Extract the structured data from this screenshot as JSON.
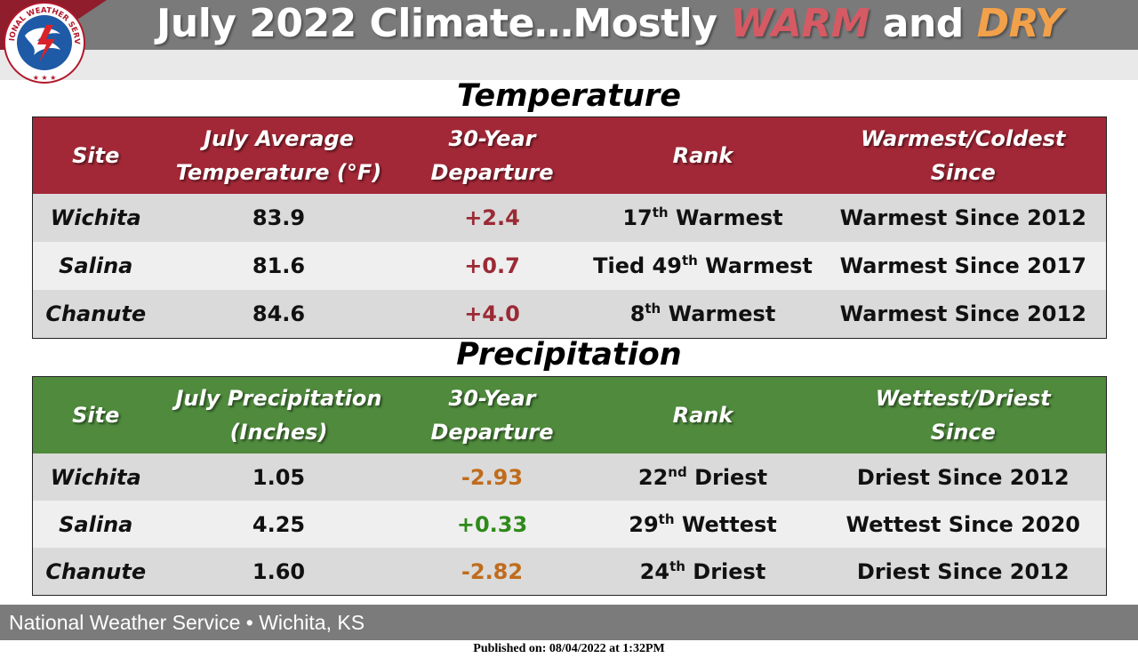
{
  "header": {
    "title_prefix": "July 2022 Climate…Mostly ",
    "title_warm": "WARM",
    "title_mid": " and ",
    "title_dry": "DRY",
    "logo_text": "NATIONAL WEATHER SERVICE"
  },
  "temperature": {
    "section_title": "Temperature",
    "headers": {
      "site": "Site",
      "value_line1": "July Average",
      "value_line2": "Temperature (°F)",
      "dep_line1": "30-Year",
      "dep_line2": "Departure",
      "rank": "Rank",
      "since_line1": "Warmest/Coldest",
      "since_line2": "Since"
    },
    "rows": [
      {
        "site": "Wichita",
        "value": "83.9",
        "departure": "+2.4",
        "rank_pre": "17",
        "rank_sup": "th",
        "rank_post": " Warmest",
        "since": "Warmest Since 2012"
      },
      {
        "site": "Salina",
        "value": "81.6",
        "departure": "+0.7",
        "rank_pre": "Tied 49",
        "rank_sup": "th",
        "rank_post": " Warmest",
        "since": "Warmest Since 2017"
      },
      {
        "site": "Chanute",
        "value": "84.6",
        "departure": "+4.0",
        "rank_pre": "8",
        "rank_sup": "th",
        "rank_post": " Warmest",
        "since": "Warmest Since 2012"
      }
    ]
  },
  "precipitation": {
    "section_title": "Precipitation",
    "headers": {
      "site": "Site",
      "value_line1": "July Precipitation",
      "value_line2": "(Inches)",
      "dep_line1": "30-Year",
      "dep_line2": "Departure",
      "rank": "Rank",
      "since_line1": "Wettest/Driest",
      "since_line2": "Since"
    },
    "rows": [
      {
        "site": "Wichita",
        "value": "1.05",
        "departure": "-2.93",
        "rank_pre": "22",
        "rank_sup": "nd",
        "rank_post": " Driest",
        "since": "Driest Since 2012"
      },
      {
        "site": "Salina",
        "value": "4.25",
        "departure": "+0.33",
        "rank_pre": "29",
        "rank_sup": "th",
        "rank_post": " Wettest",
        "since": "Wettest Since 2020"
      },
      {
        "site": "Chanute",
        "value": "1.60",
        "departure": "-2.82",
        "rank_pre": "24",
        "rank_sup": "th",
        "rank_post": " Driest",
        "since": "Driest Since 2012"
      }
    ]
  },
  "footer": {
    "office": "National Weather Service • Wichita, KS",
    "published": "Published on: 08/04/2022 at 1:32PM"
  },
  "colors": {
    "temp_header": "#a22837",
    "precip_header": "#4f8a3d",
    "warm_departure": "#9b2a35",
    "dry_departure": "#c06c1c",
    "wet_departure": "#2e8a1a"
  }
}
